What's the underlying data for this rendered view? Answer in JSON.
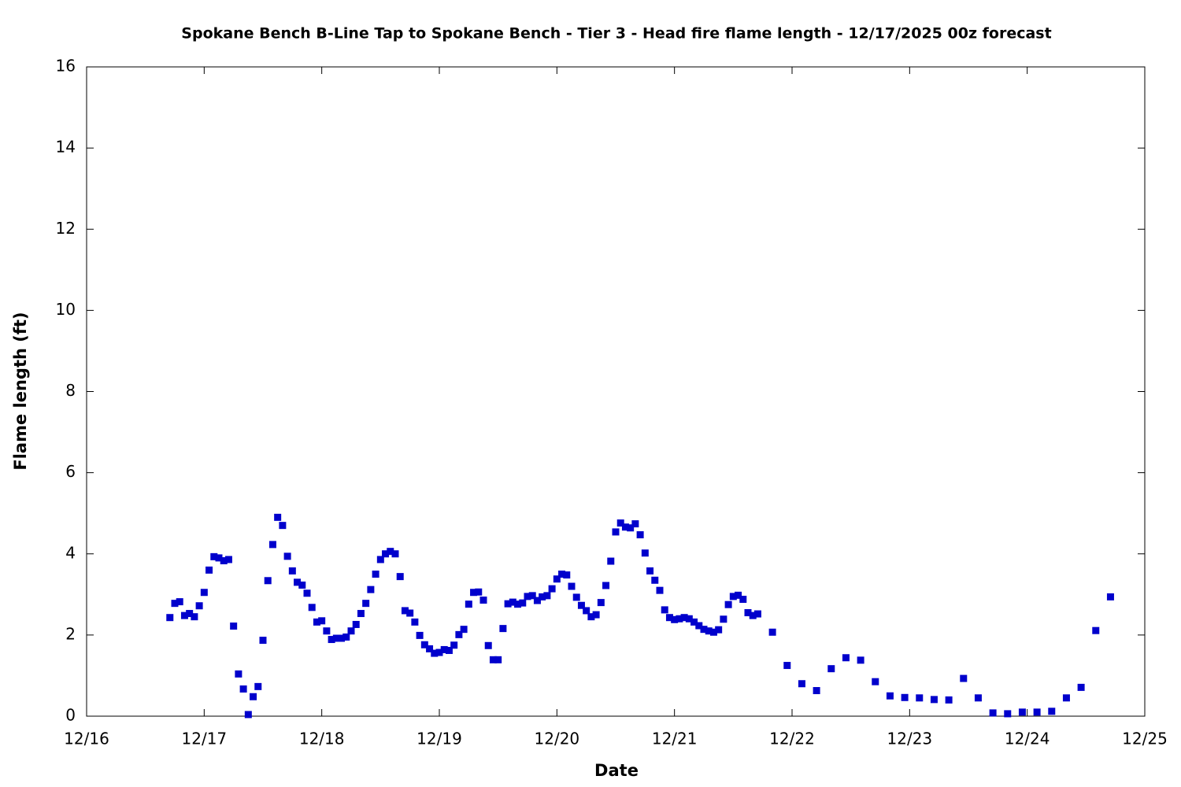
{
  "chart_data": {
    "type": "scatter",
    "title": "Spokane Bench B-Line Tap to Spokane Bench - Tier 3 - Head fire flame length - 12/17/2025 00z forecast",
    "x_label": "Date",
    "y_label": "Flame length (ft)",
    "color": "#0000cc",
    "grid": false,
    "xlim": [
      0,
      216
    ],
    "xticks": [
      {
        "value": 0,
        "label": "12/16"
      },
      {
        "value": 24,
        "label": "12/17"
      },
      {
        "value": 48,
        "label": "12/18"
      },
      {
        "value": 72,
        "label": "12/19"
      },
      {
        "value": 96,
        "label": "12/20"
      },
      {
        "value": 120,
        "label": "12/21"
      },
      {
        "value": 144,
        "label": "12/22"
      },
      {
        "value": 168,
        "label": "12/23"
      },
      {
        "value": 192,
        "label": "12/24"
      },
      {
        "value": 216,
        "label": "12/25"
      }
    ],
    "ylim": [
      0,
      16
    ],
    "yticks": [
      0,
      2,
      4,
      6,
      8,
      10,
      12,
      14,
      16
    ],
    "x": [
      17,
      18,
      19,
      20,
      21,
      22,
      23,
      24,
      25,
      26,
      27,
      28,
      29,
      30,
      31,
      32,
      33,
      34,
      35,
      36,
      37,
      38,
      39,
      40,
      41,
      42,
      43,
      44,
      45,
      46,
      47,
      48,
      49,
      50,
      51,
      52,
      53,
      54,
      55,
      56,
      57,
      58,
      59,
      60,
      61,
      62,
      63,
      64,
      65,
      66,
      67,
      68,
      69,
      70,
      71,
      72,
      73,
      74,
      75,
      76,
      77,
      78,
      79,
      80,
      81,
      82,
      83,
      84,
      85,
      86,
      87,
      88,
      89,
      90,
      91,
      92,
      93,
      94,
      95,
      96,
      97,
      98,
      99,
      100,
      101,
      102,
      103,
      104,
      105,
      106,
      107,
      108,
      109,
      110,
      111,
      112,
      113,
      114,
      115,
      116,
      117,
      118,
      119,
      120,
      121,
      122,
      123,
      124,
      125,
      126,
      127,
      128,
      129,
      130,
      131,
      132,
      133,
      134,
      135,
      136,
      137,
      140,
      143,
      146,
      149,
      152,
      155,
      158,
      161,
      164,
      167,
      170,
      173,
      176,
      179,
      182,
      185,
      188,
      191,
      194,
      197,
      200,
      203,
      206,
      209
    ],
    "values": [
      2.43,
      2.78,
      2.82,
      2.48,
      2.53,
      2.45,
      2.72,
      3.05,
      3.6,
      3.93,
      3.9,
      3.83,
      3.86,
      2.22,
      1.04,
      0.67,
      0.04,
      0.48,
      0.73,
      1.87,
      3.34,
      4.23,
      4.9,
      4.7,
      3.94,
      3.58,
      3.3,
      3.23,
      3.03,
      2.68,
      2.32,
      2.35,
      2.1,
      1.89,
      1.92,
      1.92,
      1.95,
      2.1,
      2.26,
      2.53,
      2.78,
      3.12,
      3.5,
      3.86,
      4.0,
      4.06,
      4.0,
      3.44,
      2.6,
      2.54,
      2.32,
      1.99,
      1.76,
      1.66,
      1.55,
      1.57,
      1.64,
      1.62,
      1.75,
      2.01,
      2.14,
      2.76,
      3.05,
      3.06,
      2.86,
      1.74,
      1.39,
      1.39,
      2.16,
      2.77,
      2.81,
      2.76,
      2.79,
      2.95,
      2.97,
      2.85,
      2.94,
      2.97,
      3.14,
      3.38,
      3.5,
      3.48,
      3.2,
      2.93,
      2.73,
      2.6,
      2.45,
      2.5,
      2.8,
      3.22,
      3.82,
      4.54,
      4.76,
      4.66,
      4.64,
      4.74,
      4.47,
      4.02,
      3.58,
      3.35,
      3.1,
      2.62,
      2.43,
      2.38,
      2.4,
      2.43,
      2.4,
      2.32,
      2.23,
      2.14,
      2.1,
      2.07,
      2.13,
      2.39,
      2.75,
      2.95,
      2.98,
      2.88,
      2.55,
      2.48,
      2.52,
      2.07,
      1.25,
      0.8,
      0.63,
      1.17,
      1.44,
      1.38,
      0.85,
      0.5,
      0.46,
      0.45,
      0.41,
      0.4,
      0.93,
      0.45,
      0.08,
      0.06,
      0.1,
      0.1,
      0.12,
      0.45,
      0.71,
      2.11,
      2.94
    ]
  }
}
